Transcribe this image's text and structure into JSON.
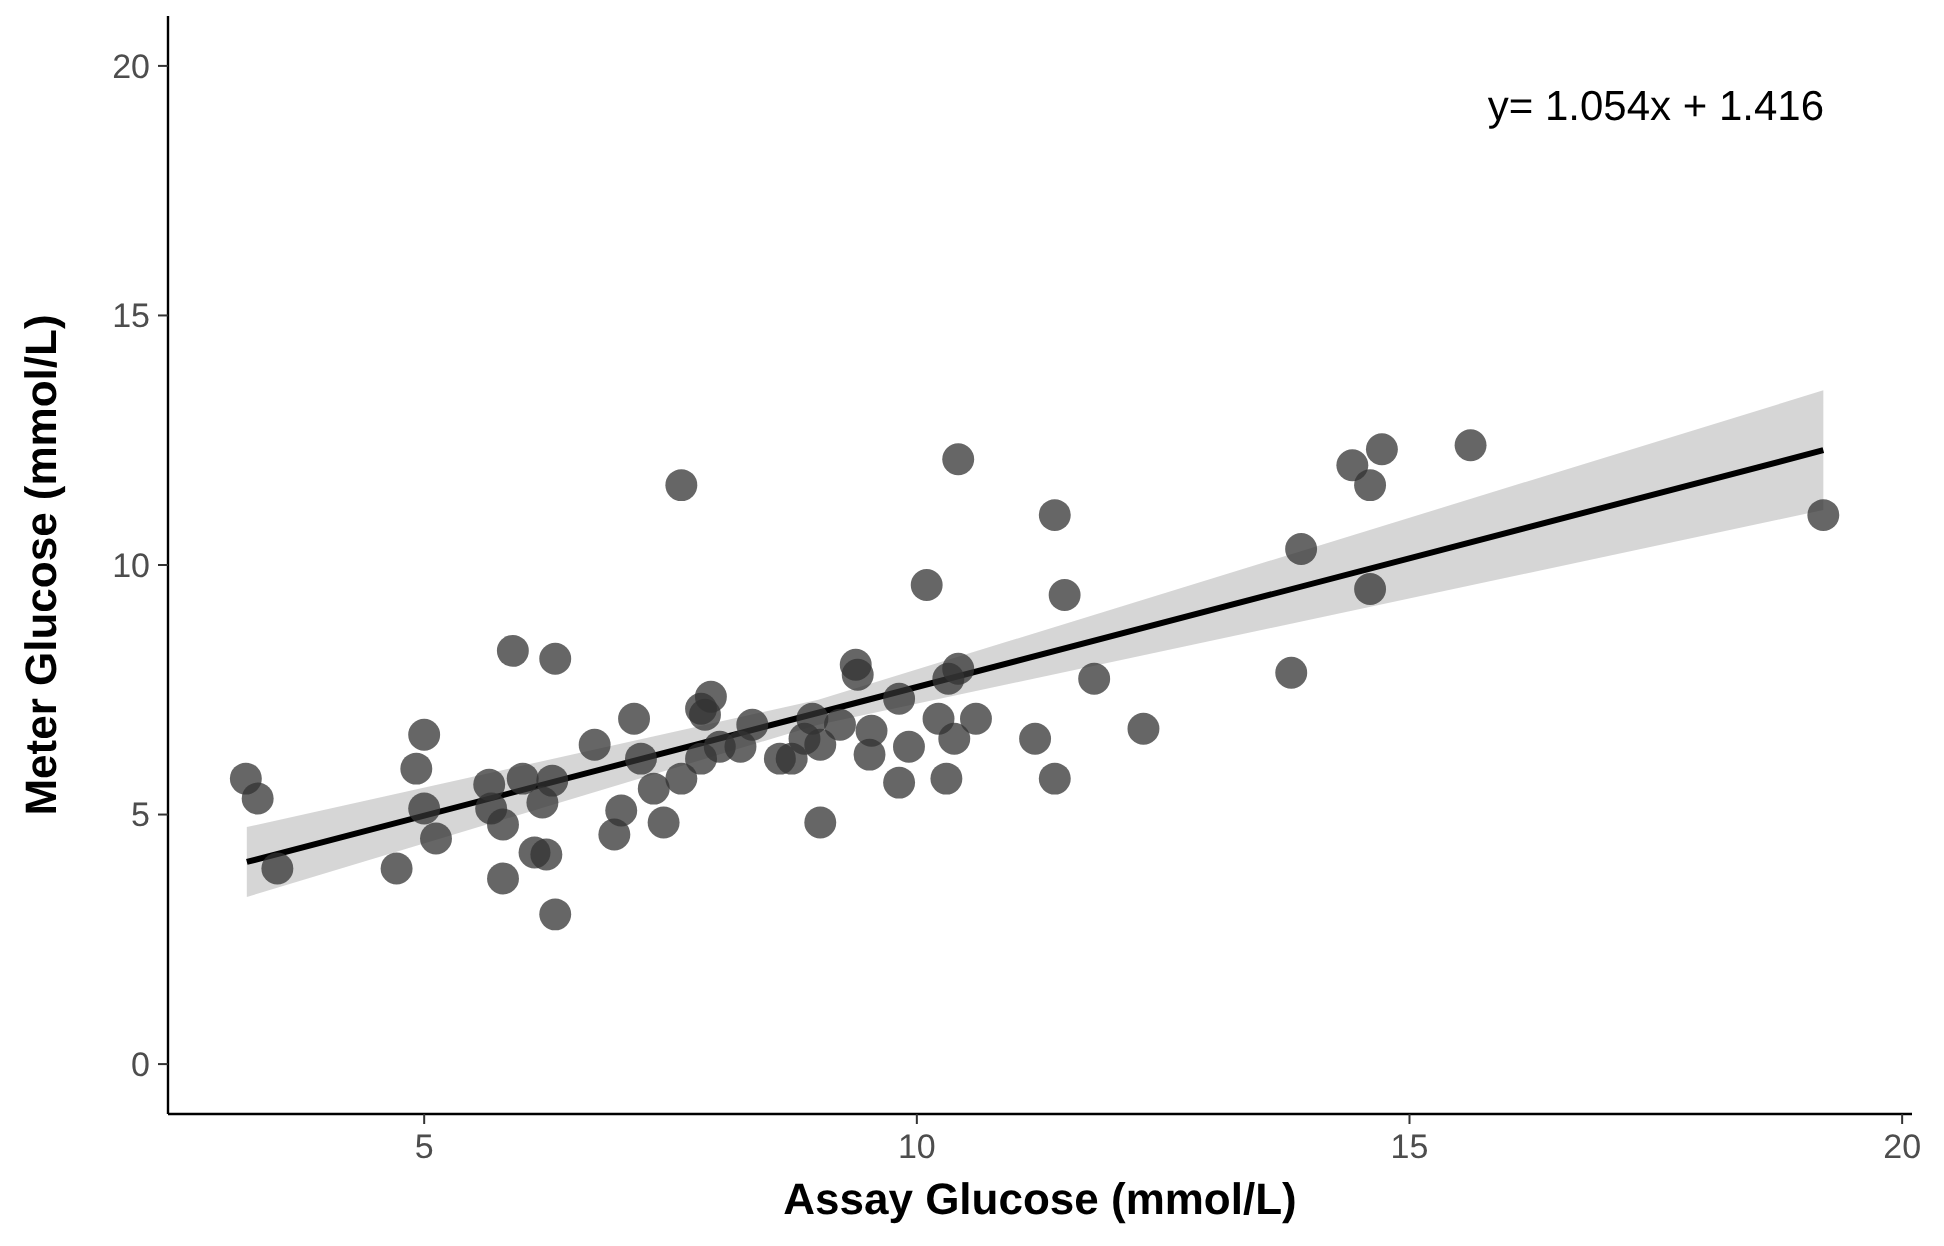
{
  "chart_data": {
    "type": "scatter",
    "xlabel": "Assay Glucose (mmol/L)",
    "ylabel": "Meter Glucose (mmol/L)",
    "annotations": [
      "y= 1.054x + 1.416"
    ],
    "xlim": [
      2.4,
      20.1
    ],
    "ylim": [
      -1,
      21
    ],
    "xticks": [
      5,
      10,
      15,
      20
    ],
    "yticks": [
      0,
      5,
      10,
      15,
      20
    ],
    "grid": false,
    "series": [
      {
        "marker": "circle",
        "color": "#333333",
        "x": [
          3.19,
          3.31,
          3.51,
          4.72,
          4.92,
          5.0,
          5.0,
          5.12,
          5.66,
          5.68,
          5.8,
          5.8,
          5.9,
          6.0,
          6.12,
          6.2,
          6.24,
          6.33,
          6.33,
          6.3,
          6.73,
          6.93,
          7.0,
          7.13,
          7.2,
          7.33,
          7.43,
          7.61,
          7.61,
          7.81,
          7.85,
          7.81,
          7.91,
          8.0,
          8.21,
          8.33,
          8.61,
          8.73,
          8.86,
          8.94,
          9.02,
          9.02,
          9.22,
          9.38,
          9.4,
          9.52,
          9.54,
          9.82,
          9.92,
          9.82,
          10.1,
          10.22,
          10.3,
          10.32,
          10.38,
          10.42,
          10.42,
          10.6,
          11.2,
          11.4,
          11.4,
          11.5,
          11.8,
          12.3,
          13.8,
          13.9,
          14.42,
          14.6,
          14.6,
          14.72,
          15.62,
          19.2
        ],
        "values": [
          5.72,
          5.32,
          3.92,
          3.92,
          5.92,
          6.6,
          5.12,
          4.52,
          5.6,
          5.12,
          4.8,
          3.72,
          8.28,
          5.72,
          4.24,
          5.24,
          4.2,
          8.12,
          3.0,
          5.68,
          6.4,
          4.6,
          5.08,
          6.92,
          6.12,
          5.52,
          4.84,
          5.72,
          11.6,
          7.12,
          7.0,
          6.12,
          7.36,
          6.36,
          6.36,
          6.8,
          6.12,
          6.12,
          6.52,
          6.92,
          4.84,
          6.4,
          6.8,
          8.0,
          7.8,
          6.2,
          6.68,
          5.64,
          6.36,
          7.32,
          9.6,
          6.92,
          5.72,
          7.72,
          6.52,
          12.12,
          7.92,
          6.92,
          6.52,
          11.0,
          5.72,
          9.4,
          7.72,
          6.72,
          7.84,
          10.32,
          12.0,
          11.6,
          9.52,
          12.32,
          12.4,
          11.0
        ]
      },
      {
        "type": "line",
        "color": "#000000",
        "x": [
          3.2,
          9,
          19.2
        ],
        "values": [
          4.05,
          7.04,
          12.3
        ],
        "lower": [
          3.35,
          6.8,
          11.1
        ],
        "upper": [
          4.75,
          7.3,
          13.5
        ]
      }
    ]
  }
}
